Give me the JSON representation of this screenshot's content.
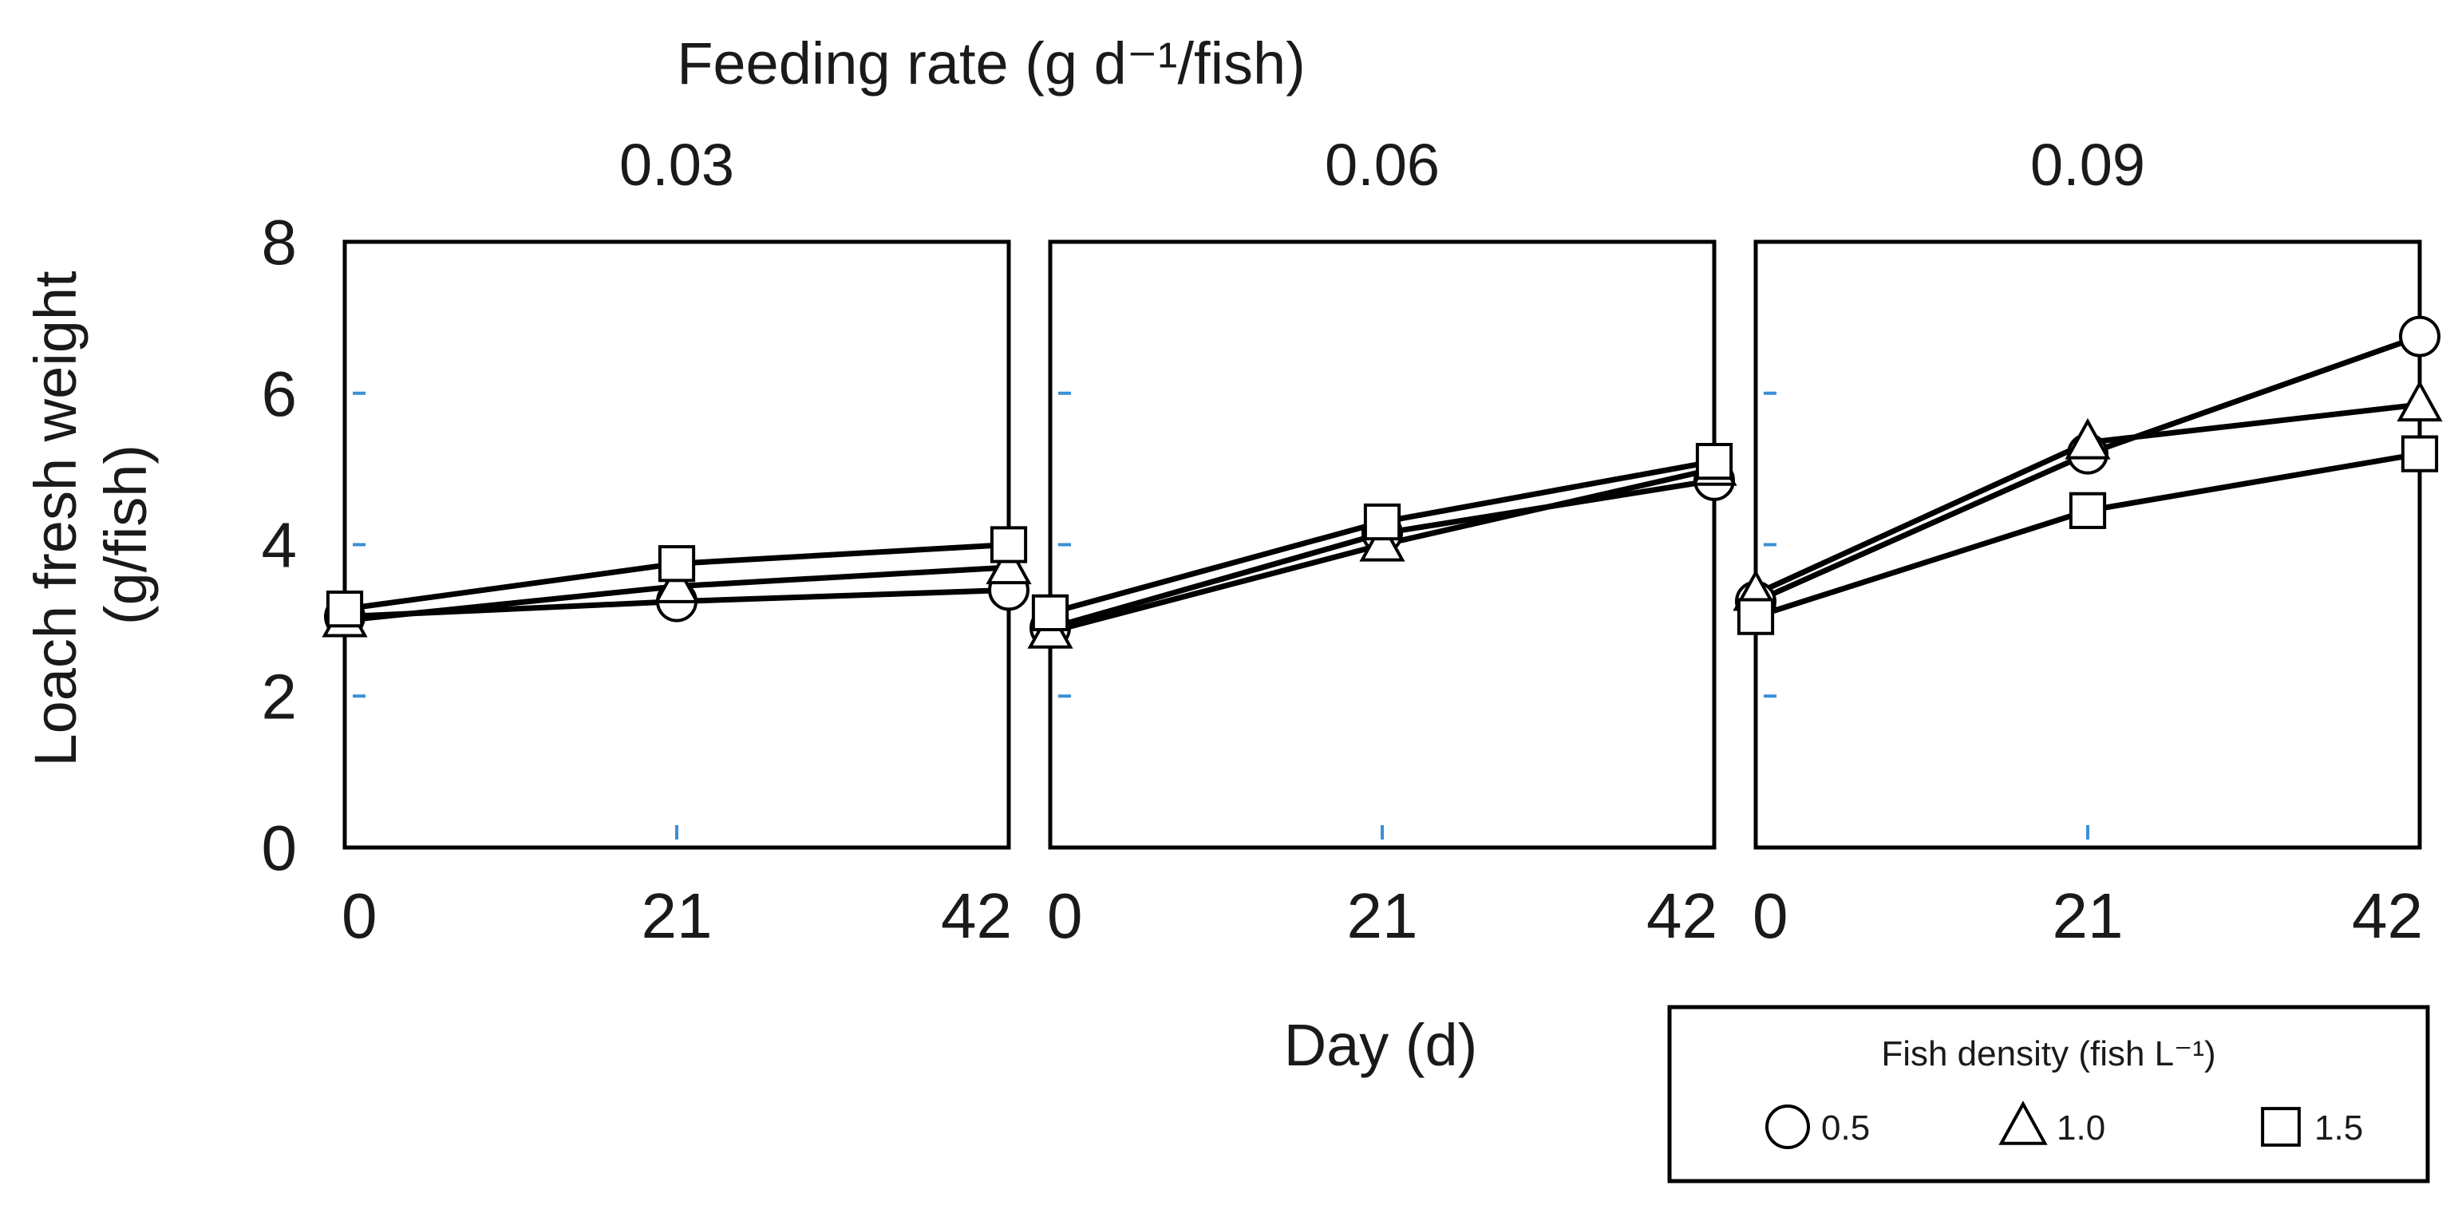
{
  "chart_data": {
    "type": "line",
    "title": "Feeding rate (g d⁻¹/fish)",
    "ylabel_line1": "Loach fresh weight",
    "ylabel_line2": "(g/fish)",
    "xlabel": "Day (d)",
    "ylim": [
      0,
      8
    ],
    "yticks": [
      "0",
      "2",
      "4",
      "6",
      "8"
    ],
    "x": [
      0,
      21,
      42
    ],
    "xticks": [
      "0",
      "21",
      "42"
    ],
    "legend": {
      "title": "Fish density (fish L⁻¹)",
      "entries": [
        {
          "label": "0.5",
          "marker": "circle"
        },
        {
          "label": "1.0",
          "marker": "triangle"
        },
        {
          "label": "1.5",
          "marker": "square"
        }
      ]
    },
    "panels": [
      {
        "label": "0.03",
        "series": [
          {
            "name": "0.5",
            "marker": "circle",
            "values": [
              3.05,
              3.25,
              3.4
            ]
          },
          {
            "name": "1.0",
            "marker": "triangle",
            "values": [
              3.0,
              3.45,
              3.7
            ]
          },
          {
            "name": "1.5",
            "marker": "square",
            "values": [
              3.15,
              3.75,
              4.0
            ]
          }
        ]
      },
      {
        "label": "0.06",
        "series": [
          {
            "name": "0.5",
            "marker": "circle",
            "values": [
              2.9,
              4.15,
              4.85
            ]
          },
          {
            "name": "1.0",
            "marker": "triangle",
            "values": [
              2.85,
              4.0,
              5.0
            ]
          },
          {
            "name": "1.5",
            "marker": "square",
            "values": [
              3.1,
              4.3,
              5.1
            ]
          }
        ]
      },
      {
        "label": "0.09",
        "series": [
          {
            "name": "0.5",
            "marker": "circle",
            "values": [
              3.25,
              5.2,
              6.75
            ]
          },
          {
            "name": "1.0",
            "marker": "triangle",
            "values": [
              3.35,
              5.35,
              5.85
            ]
          },
          {
            "name": "1.5",
            "marker": "square",
            "values": [
              3.05,
              4.45,
              5.2
            ]
          }
        ]
      }
    ]
  }
}
